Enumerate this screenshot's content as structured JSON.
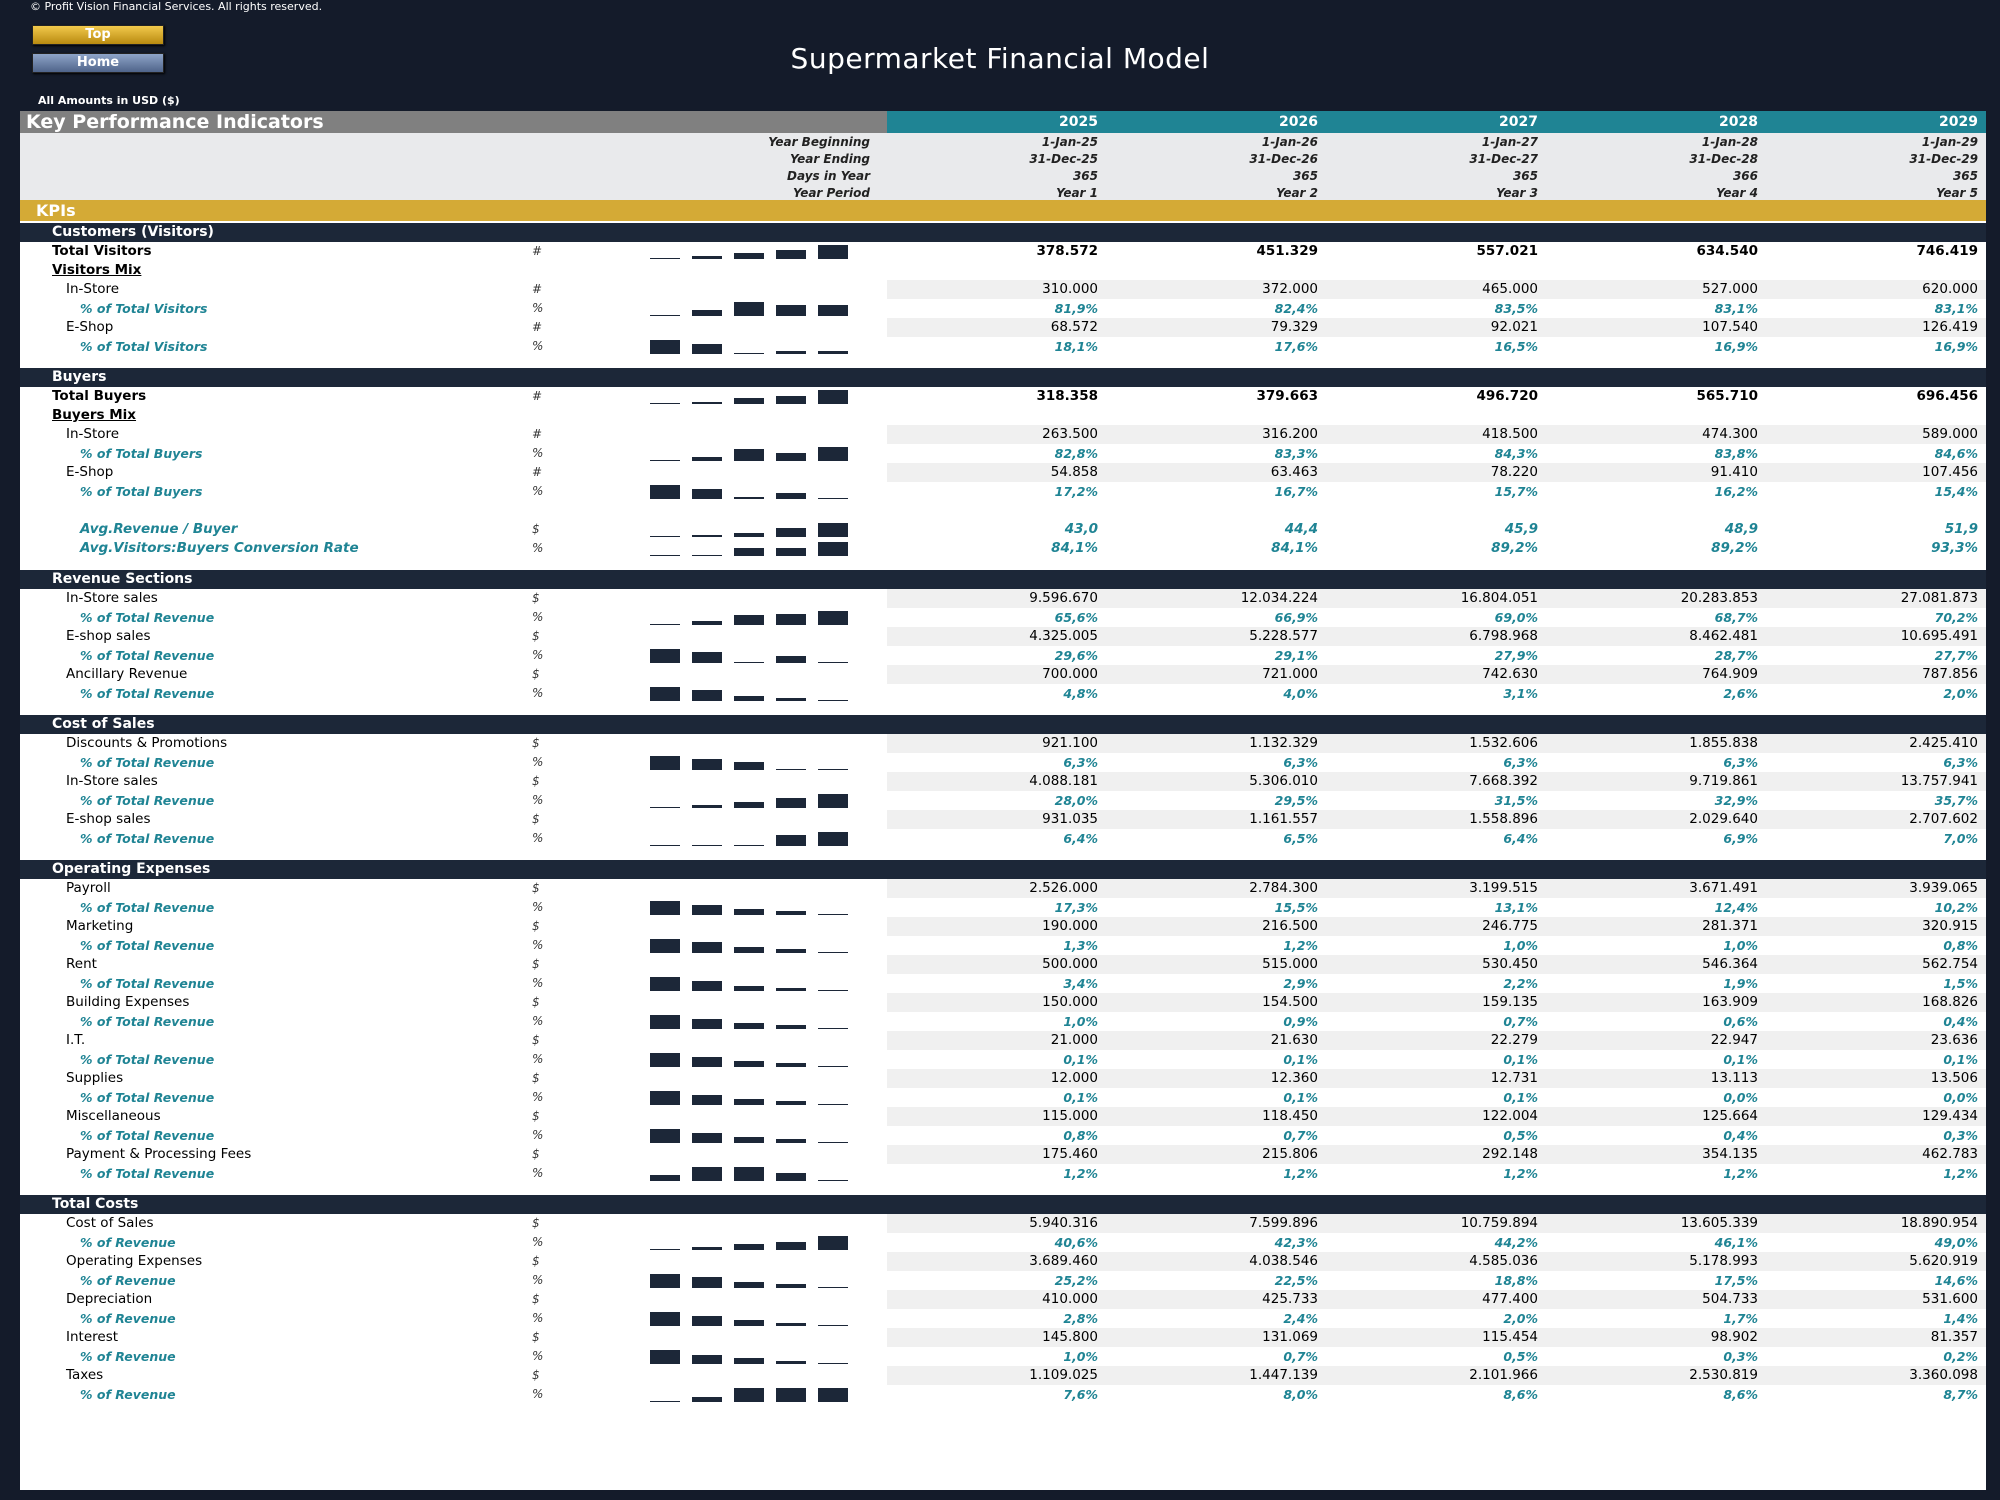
{
  "header": {
    "copyright": "© Profit Vision Financial Services. All rights reserved.",
    "top_button": "Top",
    "home_button": "Home",
    "title": "Supermarket Financial Model",
    "currency_note": "All Amounts in  USD ($)"
  },
  "kpi_header": "Key Performance Indicators",
  "years": [
    "2025",
    "2026",
    "2027",
    "2028",
    "2029"
  ],
  "meta": {
    "labels": [
      "Year Beginning",
      "Year Ending",
      "Days in Year",
      "Year Period"
    ],
    "values": [
      [
        "1-Jan-25",
        "1-Jan-26",
        "1-Jan-27",
        "1-Jan-28",
        "1-Jan-29"
      ],
      [
        "31-Dec-25",
        "31-Dec-26",
        "31-Dec-27",
        "31-Dec-28",
        "31-Dec-29"
      ],
      [
        "365",
        "365",
        "365",
        "366",
        "365"
      ],
      [
        "Year 1",
        "Year 2",
        "Year 3",
        "Year 4",
        "Year 5"
      ]
    ]
  },
  "kpis_label": "KPIs",
  "colors": {
    "navy": "#1c2738",
    "teal": "#1f8494",
    "gold": "#d4aa36",
    "gray": "#808080"
  },
  "sections": [
    {
      "title": "Customers (Visitors)",
      "rows": [
        {
          "label": "Total Visitors",
          "unit": "#",
          "type": "main",
          "spark": [
            0.05,
            0.2,
            0.45,
            0.65,
            1.0
          ],
          "values": [
            "378.572",
            "451.329",
            "557.021",
            "634.540",
            "746.419"
          ]
        },
        {
          "label": "Visitors Mix",
          "type": "mix"
        },
        {
          "label": "In-Store",
          "unit": "#",
          "type": "sub",
          "values": [
            "310.000",
            "372.000",
            "465.000",
            "527.000",
            "620.000"
          ]
        },
        {
          "label": "% of Total Visitors",
          "unit": "%",
          "type": "pct",
          "spark": [
            0.05,
            0.45,
            1.0,
            0.8,
            0.8
          ],
          "values": [
            "81,9%",
            "82,4%",
            "83,5%",
            "83,1%",
            "83,1%"
          ]
        },
        {
          "label": "E-Shop",
          "unit": "#",
          "type": "sub",
          "values": [
            "68.572",
            "79.329",
            "92.021",
            "107.540",
            "126.419"
          ]
        },
        {
          "label": "% of Total Visitors",
          "unit": "%",
          "type": "pct",
          "spark": [
            1.0,
            0.7,
            0.05,
            0.2,
            0.2
          ],
          "values": [
            "18,1%",
            "17,6%",
            "16,5%",
            "16,9%",
            "16,9%"
          ]
        }
      ]
    },
    {
      "title": "Buyers",
      "rows": [
        {
          "label": "Total Buyers",
          "unit": "#",
          "type": "main",
          "spark": [
            0.05,
            0.15,
            0.45,
            0.6,
            1.0
          ],
          "values": [
            "318.358",
            "379.663",
            "496.720",
            "565.710",
            "696.456"
          ]
        },
        {
          "label": "Buyers Mix",
          "type": "mix"
        },
        {
          "label": "In-Store",
          "unit": "#",
          "type": "sub",
          "values": [
            "263.500",
            "316.200",
            "418.500",
            "474.300",
            "589.000"
          ]
        },
        {
          "label": "% of Total Buyers",
          "unit": "%",
          "type": "pct",
          "spark": [
            0.05,
            0.3,
            0.85,
            0.6,
            1.0
          ],
          "values": [
            "82,8%",
            "83,3%",
            "84,3%",
            "83,8%",
            "84,6%"
          ]
        },
        {
          "label": "E-Shop",
          "unit": "#",
          "type": "sub",
          "values": [
            "54.858",
            "63.463",
            "78.220",
            "91.410",
            "107.456"
          ]
        },
        {
          "label": "% of Total Buyers",
          "unit": "%",
          "type": "pct",
          "spark": [
            1.0,
            0.7,
            0.15,
            0.4,
            0.05
          ],
          "values": [
            "17,2%",
            "16,7%",
            "15,7%",
            "16,2%",
            "15,4%"
          ]
        },
        {
          "type": "blank"
        },
        {
          "label": "Avg.Revenue / Buyer",
          "unit": "$",
          "type": "avg",
          "spark": [
            0.05,
            0.15,
            0.3,
            0.65,
            1.0
          ],
          "values": [
            "43,0",
            "44,4",
            "45,9",
            "48,9",
            "51,9"
          ]
        },
        {
          "label": "Avg.Visitors:Buyers Conversion Rate",
          "unit": "%",
          "type": "avg",
          "spark": [
            0.05,
            0.05,
            0.55,
            0.55,
            1.0
          ],
          "values": [
            "84,1%",
            "84,1%",
            "89,2%",
            "89,2%",
            "93,3%"
          ]
        }
      ]
    },
    {
      "title": "Revenue Sections",
      "rows": [
        {
          "label": "In-Store sales",
          "unit": "$",
          "type": "sub",
          "values": [
            "9.596.670",
            "12.034.224",
            "16.804.051",
            "20.283.853",
            "27.081.873"
          ]
        },
        {
          "label": "% of Total Revenue",
          "unit": "%",
          "type": "pct",
          "spark": [
            0.05,
            0.25,
            0.7,
            0.75,
            1.0
          ],
          "values": [
            "65,6%",
            "66,9%",
            "69,0%",
            "68,7%",
            "70,2%"
          ]
        },
        {
          "label": "E-shop sales",
          "unit": "$",
          "type": "sub",
          "values": [
            "4.325.005",
            "5.228.577",
            "6.798.968",
            "8.462.481",
            "10.695.491"
          ]
        },
        {
          "label": "% of Total Revenue",
          "unit": "%",
          "type": "pct",
          "spark": [
            1.0,
            0.8,
            0.05,
            0.5,
            0.05
          ],
          "values": [
            "29,6%",
            "29,1%",
            "27,9%",
            "28,7%",
            "27,7%"
          ]
        },
        {
          "label": "Ancillary Revenue",
          "unit": "$",
          "type": "sub",
          "values": [
            "700.000",
            "721.000",
            "742.630",
            "764.909",
            "787.856"
          ]
        },
        {
          "label": "% of Total Revenue",
          "unit": "%",
          "type": "pct",
          "spark": [
            1.0,
            0.75,
            0.35,
            0.2,
            0.05
          ],
          "values": [
            "4,8%",
            "4,0%",
            "3,1%",
            "2,6%",
            "2,0%"
          ]
        }
      ]
    },
    {
      "title": "Cost of Sales",
      "rows": [
        {
          "label": "Discounts & Promotions",
          "unit": "$",
          "type": "sub",
          "values": [
            "921.100",
            "1.132.329",
            "1.532.606",
            "1.855.838",
            "2.425.410"
          ]
        },
        {
          "label": "% of Total Revenue",
          "unit": "%",
          "type": "pct",
          "spark": [
            1.0,
            0.75,
            0.55,
            0.05,
            0.05
          ],
          "values": [
            "6,3%",
            "6,3%",
            "6,3%",
            "6,3%",
            "6,3%"
          ]
        },
        {
          "label": "In-Store sales",
          "unit": "$",
          "type": "sub",
          "values": [
            "4.088.181",
            "5.306.010",
            "7.668.392",
            "9.719.861",
            "13.757.941"
          ]
        },
        {
          "label": "% of Total Revenue",
          "unit": "%",
          "type": "pct",
          "spark": [
            0.05,
            0.2,
            0.45,
            0.7,
            1.0
          ],
          "values": [
            "28,0%",
            "29,5%",
            "31,5%",
            "32,9%",
            "35,7%"
          ]
        },
        {
          "label": "E-shop sales",
          "unit": "$",
          "type": "sub",
          "values": [
            "931.035",
            "1.161.557",
            "1.558.896",
            "2.029.640",
            "2.707.602"
          ]
        },
        {
          "label": "% of Total Revenue",
          "unit": "%",
          "type": "pct",
          "spark": [
            0.05,
            0.1,
            0.05,
            0.75,
            1.0
          ],
          "values": [
            "6,4%",
            "6,5%",
            "6,4%",
            "6,9%",
            "7,0%"
          ]
        }
      ]
    },
    {
      "title": "Operating Expenses",
      "rows": [
        {
          "label": "Payroll",
          "unit": "$",
          "type": "sub",
          "values": [
            "2.526.000",
            "2.784.300",
            "3.199.515",
            "3.671.491",
            "3.939.065"
          ]
        },
        {
          "label": "% of Total Revenue",
          "unit": "%",
          "type": "pct",
          "spark": [
            1.0,
            0.7,
            0.4,
            0.25,
            0.05
          ],
          "values": [
            "17,3%",
            "15,5%",
            "13,1%",
            "12,4%",
            "10,2%"
          ]
        },
        {
          "label": "Marketing",
          "unit": "$",
          "type": "sub",
          "values": [
            "190.000",
            "216.500",
            "246.775",
            "281.371",
            "320.915"
          ]
        },
        {
          "label": "% of Total Revenue",
          "unit": "%",
          "type": "pct",
          "spark": [
            1.0,
            0.75,
            0.4,
            0.3,
            0.05
          ],
          "values": [
            "1,3%",
            "1,2%",
            "1,0%",
            "1,0%",
            "0,8%"
          ]
        },
        {
          "label": "Rent",
          "unit": "$",
          "type": "sub",
          "values": [
            "500.000",
            "515.000",
            "530.450",
            "546.364",
            "562.754"
          ]
        },
        {
          "label": "% of Total Revenue",
          "unit": "%",
          "type": "pct",
          "spark": [
            1.0,
            0.7,
            0.35,
            0.2,
            0.05
          ],
          "values": [
            "3,4%",
            "2,9%",
            "2,2%",
            "1,9%",
            "1,5%"
          ]
        },
        {
          "label": "Building Expenses",
          "unit": "$",
          "type": "sub",
          "values": [
            "150.000",
            "154.500",
            "159.135",
            "163.909",
            "168.826"
          ]
        },
        {
          "label": "% of Total Revenue",
          "unit": "%",
          "type": "pct",
          "spark": [
            1.0,
            0.7,
            0.4,
            0.25,
            0.05
          ],
          "values": [
            "1,0%",
            "0,9%",
            "0,7%",
            "0,6%",
            "0,4%"
          ]
        },
        {
          "label": "I.T.",
          "unit": "$",
          "type": "sub",
          "values": [
            "21.000",
            "21.630",
            "22.279",
            "22.947",
            "23.636"
          ]
        },
        {
          "label": "% of Total Revenue",
          "unit": "%",
          "type": "pct",
          "spark": [
            1.0,
            0.7,
            0.4,
            0.25,
            0.05
          ],
          "values": [
            "0,1%",
            "0,1%",
            "0,1%",
            "0,1%",
            "0,1%"
          ]
        },
        {
          "label": "Supplies",
          "unit": "$",
          "type": "sub",
          "values": [
            "12.000",
            "12.360",
            "12.731",
            "13.113",
            "13.506"
          ]
        },
        {
          "label": "% of Total Revenue",
          "unit": "%",
          "type": "pct",
          "spark": [
            1.0,
            0.7,
            0.4,
            0.25,
            0.05
          ],
          "values": [
            "0,1%",
            "0,1%",
            "0,1%",
            "0,0%",
            "0,0%"
          ]
        },
        {
          "label": "Miscellaneous",
          "unit": "$",
          "type": "sub",
          "values": [
            "115.000",
            "118.450",
            "122.004",
            "125.664",
            "129.434"
          ]
        },
        {
          "label": "% of Total Revenue",
          "unit": "%",
          "type": "pct",
          "spark": [
            1.0,
            0.7,
            0.4,
            0.25,
            0.05
          ],
          "values": [
            "0,8%",
            "0,7%",
            "0,5%",
            "0,4%",
            "0,3%"
          ]
        },
        {
          "label": "Payment & Processing Fees",
          "unit": "$",
          "type": "sub",
          "values": [
            "175.460",
            "215.806",
            "292.148",
            "354.135",
            "462.783"
          ]
        },
        {
          "label": "% of Total Revenue",
          "unit": "%",
          "type": "pct",
          "spark": [
            0.4,
            1.0,
            1.0,
            0.55,
            0.0
          ],
          "values": [
            "1,2%",
            "1,2%",
            "1,2%",
            "1,2%",
            "1,2%"
          ]
        }
      ]
    },
    {
      "title": "Total Costs",
      "rows": [
        {
          "label": "Cost of Sales",
          "unit": "$",
          "type": "sub",
          "values": [
            "5.940.316",
            "7.599.896",
            "10.759.894",
            "13.605.339",
            "18.890.954"
          ]
        },
        {
          "label": "% of Revenue",
          "unit": "%",
          "type": "pct",
          "spark": [
            0.05,
            0.2,
            0.4,
            0.6,
            1.0
          ],
          "values": [
            "40,6%",
            "42,3%",
            "44,2%",
            "46,1%",
            "49,0%"
          ]
        },
        {
          "label": "Operating Expenses",
          "unit": "$",
          "type": "sub",
          "values": [
            "3.689.460",
            "4.038.546",
            "4.585.036",
            "5.178.993",
            "5.620.919"
          ]
        },
        {
          "label": "% of Revenue",
          "unit": "%",
          "type": "pct",
          "spark": [
            1.0,
            0.75,
            0.4,
            0.25,
            0.05
          ],
          "values": [
            "25,2%",
            "22,5%",
            "18,8%",
            "17,5%",
            "14,6%"
          ]
        },
        {
          "label": "Depreciation",
          "unit": "$",
          "type": "sub",
          "values": [
            "410.000",
            "425.733",
            "477.400",
            "504.733",
            "531.600"
          ]
        },
        {
          "label": "% of Revenue",
          "unit": "%",
          "type": "pct",
          "spark": [
            1.0,
            0.7,
            0.45,
            0.2,
            0.05
          ],
          "values": [
            "2,8%",
            "2,4%",
            "2,0%",
            "1,7%",
            "1,4%"
          ]
        },
        {
          "label": "Interest",
          "unit": "$",
          "type": "sub",
          "values": [
            "145.800",
            "131.069",
            "115.454",
            "98.902",
            "81.357"
          ]
        },
        {
          "label": "% of Revenue",
          "unit": "%",
          "type": "pct",
          "spark": [
            1.0,
            0.65,
            0.4,
            0.2,
            0.05
          ],
          "values": [
            "1,0%",
            "0,7%",
            "0,5%",
            "0,3%",
            "0,2%"
          ]
        },
        {
          "label": "Taxes",
          "unit": "$",
          "type": "sub",
          "values": [
            "1.109.025",
            "1.447.139",
            "2.101.966",
            "2.530.819",
            "3.360.098"
          ]
        },
        {
          "label": "% of Revenue",
          "unit": "%",
          "type": "pct",
          "spark": [
            0.05,
            0.35,
            1.0,
            1.0,
            1.0
          ],
          "values": [
            "7,6%",
            "8,0%",
            "8,6%",
            "8,6%",
            "8,7%"
          ]
        }
      ]
    }
  ]
}
